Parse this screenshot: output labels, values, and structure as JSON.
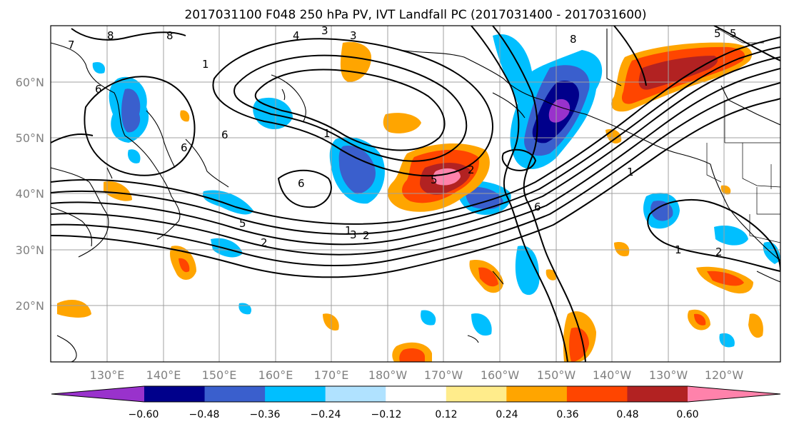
{
  "title": "2017031100 F048 250 hPa PV, IVT Landfall PC (2017031400 - 2017031600)",
  "lat_labels": [
    "60°N",
    "50°N",
    "40°N",
    "30°N",
    "20°N"
  ],
  "lon_labels": [
    "130°E",
    "140°E",
    "150°E",
    "160°E",
    "170°E",
    "180°W",
    "170°W",
    "160°W",
    "150°W",
    "140°W",
    "130°W",
    "120°W"
  ],
  "colorbar": {
    "colors": [
      "#9932cc",
      "#00008b",
      "#3a5fcd",
      "#00bfff",
      "#b0e2ff",
      "#ffffff",
      "#ffec8b",
      "#ffa500",
      "#ff4500",
      "#b22222",
      "#ff82ab"
    ],
    "tick_labels": [
      "−0.60",
      "−0.48",
      "−0.36",
      "−0.24",
      "−0.12",
      "0.12",
      "0.24",
      "0.36",
      "0.48",
      "0.60"
    ]
  },
  "contour_labels": [
    "1",
    "2",
    "3",
    "4",
    "5",
    "6",
    "7",
    "8",
    "1",
    "2",
    "3",
    "5",
    "6",
    "1",
    "5",
    "6",
    "8",
    "6",
    "1",
    "2",
    "1",
    "2",
    "3",
    "5",
    "6",
    "8"
  ],
  "regions": [
    {
      "value": -0.3,
      "color": "#00bfff"
    },
    {
      "value": -0.45,
      "color": "#3a5fcd"
    },
    {
      "value": 0.3,
      "color": "#ffa500"
    },
    {
      "value": 0.45,
      "color": "#ff4500"
    }
  ]
}
